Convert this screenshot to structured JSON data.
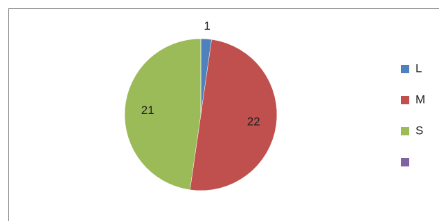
{
  "chart_data": {
    "type": "pie",
    "categories": [
      "L",
      "M",
      "S",
      null
    ],
    "values": [
      1,
      22,
      21,
      0
    ],
    "colors": [
      "#4f81bd",
      "#c0504d",
      "#9bbb59",
      "#8064a2"
    ],
    "legend": "right"
  }
}
